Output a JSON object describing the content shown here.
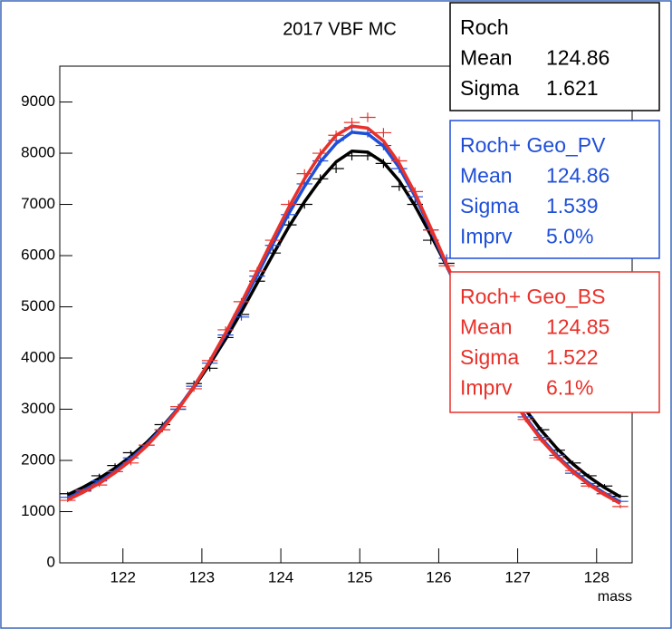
{
  "chart_data": {
    "type": "histogram",
    "title": "2017 VBF MC",
    "x_label": "mass",
    "xlim": [
      121.2,
      128.45
    ],
    "ylim": [
      0,
      9700
    ],
    "xticks": [
      122,
      123,
      124,
      125,
      126,
      127,
      128
    ],
    "yticks": [
      0,
      1000,
      2000,
      3000,
      4000,
      5000,
      6000,
      7000,
      8000,
      9000
    ],
    "bins": [
      121.2,
      121.4,
      121.6,
      121.8,
      122.0,
      122.2,
      122.4,
      122.6,
      122.8,
      123.0,
      123.2,
      123.4,
      123.6,
      123.8,
      124.0,
      124.2,
      124.4,
      124.6,
      124.8,
      125.0,
      125.2,
      125.4,
      125.6,
      125.8,
      126.0,
      126.2,
      126.4,
      126.6,
      126.8,
      127.0,
      127.2,
      127.4,
      127.6,
      127.8,
      128.0,
      128.2,
      128.4
    ],
    "x": [
      121.3,
      121.5,
      121.7,
      121.9,
      122.1,
      122.3,
      122.5,
      122.7,
      122.9,
      123.1,
      123.3,
      123.5,
      123.7,
      123.9,
      124.1,
      124.3,
      124.5,
      124.7,
      124.9,
      125.1,
      125.3,
      125.5,
      125.7,
      125.9,
      126.1,
      126.3,
      126.5,
      126.7,
      126.9,
      127.1,
      127.3,
      127.5,
      127.7,
      127.9,
      128.1,
      128.3
    ],
    "series": [
      {
        "name": "Roch",
        "color": "#000000",
        "values": [
          1350,
          1420,
          1700,
          1900,
          2150,
          2300,
          2700,
          3000,
          3500,
          3800,
          4400,
          4850,
          5500,
          6050,
          6600,
          7000,
          7500,
          7700,
          7950,
          7950,
          7800,
          7350,
          7000,
          6300,
          5850,
          5100,
          4500,
          4000,
          3400,
          3000,
          2600,
          2200,
          1950,
          1700,
          1500,
          1300
        ],
        "fit": [
          1330,
          1480,
          1650,
          1850,
          2080,
          2350,
          2660,
          3020,
          3430,
          3880,
          4370,
          4900,
          5460,
          6020,
          6560,
          7050,
          7480,
          7830,
          8040,
          8020,
          7820,
          7460,
          6970,
          6400,
          5800,
          5180,
          4570,
          3990,
          3460,
          2990,
          2580,
          2230,
          1930,
          1680,
          1470,
          1290
        ],
        "stats": [
          {
            "label": "Mean",
            "value": "124.86"
          },
          {
            "label": "Sigma",
            "value": "1.621"
          }
        ]
      },
      {
        "name": "Roch+ Geo_PV",
        "color": "#1f4fd8",
        "values": [
          1280,
          1400,
          1600,
          1780,
          2050,
          2300,
          2600,
          3000,
          3450,
          3900,
          4450,
          4800,
          5600,
          6200,
          6800,
          7400,
          7850,
          8250,
          8500,
          8400,
          8150,
          7700,
          7150,
          6500,
          5950,
          5100,
          4450,
          3900,
          3300,
          2850,
          2450,
          2100,
          1750,
          1550,
          1350,
          1200
        ],
        "fit": [
          1260,
          1410,
          1580,
          1790,
          2030,
          2310,
          2640,
          3020,
          3450,
          3930,
          4460,
          5030,
          5620,
          6230,
          6820,
          7350,
          7830,
          8190,
          8410,
          8380,
          8140,
          7720,
          7160,
          6500,
          5810,
          5120,
          4470,
          3860,
          3320,
          2840,
          2430,
          2090,
          1800,
          1560,
          1360,
          1190
        ],
        "stats": [
          {
            "label": "Mean",
            "value": "124.86"
          },
          {
            "label": "Sigma",
            "value": "1.539"
          },
          {
            "label": "Imprv",
            "value": "5.0%"
          }
        ]
      },
      {
        "name": "Roch+ Geo_BS",
        "color": "#e8312a",
        "values": [
          1220,
          1420,
          1520,
          1780,
          1950,
          2300,
          2600,
          3050,
          3400,
          3950,
          4550,
          5100,
          5700,
          6300,
          7000,
          7600,
          8000,
          8350,
          8600,
          8700,
          8400,
          7850,
          7250,
          6500,
          5800,
          5100,
          4400,
          3850,
          3300,
          2800,
          2400,
          2050,
          1800,
          1500,
          1350,
          1100
        ],
        "fit": [
          1230,
          1380,
          1550,
          1760,
          2000,
          2280,
          2610,
          3000,
          3440,
          3940,
          4490,
          5080,
          5700,
          6330,
          6940,
          7500,
          7980,
          8350,
          8530,
          8490,
          8240,
          7800,
          7220,
          6540,
          5840,
          5130,
          4460,
          3840,
          3290,
          2810,
          2400,
          2060,
          1770,
          1530,
          1330,
          1160
        ],
        "stats": [
          {
            "label": "Mean",
            "value": "124.85"
          },
          {
            "label": "Sigma",
            "value": "1.522"
          },
          {
            "label": "Imprv",
            "value": "6.1%"
          }
        ]
      }
    ]
  }
}
